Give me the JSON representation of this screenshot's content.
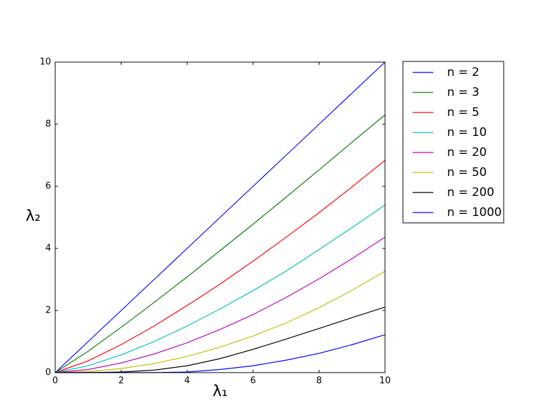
{
  "chart_data": {
    "type": "line",
    "xlabel": "λ₁",
    "ylabel": "λ₂",
    "x": [
      0,
      1,
      2,
      3,
      4,
      5,
      6,
      7,
      8,
      9,
      10
    ],
    "series": [
      {
        "name": "n = 2",
        "color": "#0000ff",
        "values": [
          0,
          1,
          2,
          3,
          4,
          5,
          6,
          7,
          8,
          9,
          10
        ]
      },
      {
        "name": "n = 3",
        "color": "#008000",
        "values": [
          0,
          0.69,
          1.46,
          2.26,
          3.08,
          3.93,
          4.78,
          5.65,
          6.53,
          7.42,
          8.3
        ]
      },
      {
        "name": "n = 5",
        "color": "#ff0000",
        "values": [
          0,
          0.38,
          0.9,
          1.5,
          2.16,
          2.85,
          3.59,
          4.36,
          5.15,
          5.98,
          6.84
        ]
      },
      {
        "name": "n = 10",
        "color": "#00bfbf",
        "values": [
          0,
          0.22,
          0.57,
          1.0,
          1.5,
          2.05,
          2.64,
          3.27,
          3.96,
          4.67,
          5.4
        ]
      },
      {
        "name": "n = 20",
        "color": "#bf00bf",
        "values": [
          0,
          0.1,
          0.31,
          0.6,
          0.96,
          1.39,
          1.87,
          2.42,
          3.02,
          3.67,
          4.36
        ]
      },
      {
        "name": "n = 50",
        "color": "#bfbf00",
        "values": [
          0,
          0.03,
          0.13,
          0.29,
          0.52,
          0.82,
          1.18,
          1.6,
          2.09,
          2.65,
          3.27
        ]
      },
      {
        "name": "n = 200",
        "color": "#000000",
        "values": [
          0,
          0,
          0.02,
          0.08,
          0.22,
          0.45,
          0.75,
          1.08,
          1.42,
          1.77,
          2.11
        ]
      },
      {
        "name": "n = 1000",
        "color": "#0000ff",
        "values": [
          0,
          0,
          0,
          0,
          0.02,
          0.1,
          0.22,
          0.4,
          0.62,
          0.9,
          1.22
        ]
      }
    ],
    "xlim": [
      0,
      10
    ],
    "ylim": [
      0,
      10
    ],
    "xticks": [
      0,
      2,
      4,
      6,
      8,
      10
    ],
    "yticks": [
      0,
      2,
      4,
      6,
      8,
      10
    ],
    "grid": false,
    "legend": "outside-right"
  }
}
